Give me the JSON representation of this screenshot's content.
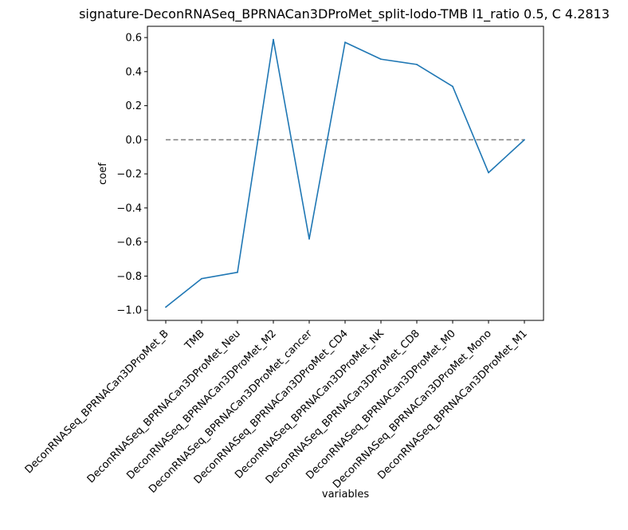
{
  "chart_data": {
    "type": "line",
    "title": "signature-DeconRNASeq_BPRNACan3DProMet_split-lodo-TMB l1_ratio 0.5, C 4.2813",
    "xlabel": "variables",
    "ylabel": "coef",
    "categories": [
      "DeconRNASeq_BPRNACan3DProMet_B",
      "TMB",
      "DeconRNASeq_BPRNACan3DProMet_Neu",
      "DeconRNASeq_BPRNACan3DProMet_M2",
      "DeconRNASeq_BPRNACan3DProMet_cancer",
      "DeconRNASeq_BPRNACan3DProMet_CD4",
      "DeconRNASeq_BPRNACan3DProMet_NK",
      "DeconRNASeq_BPRNACan3DProMet_CD8",
      "DeconRNASeq_BPRNACan3DProMet_M0",
      "DeconRNASeq_BPRNACan3DProMet_Mono",
      "DeconRNASeq_BPRNACan3DProMet_M1"
    ],
    "series": [
      {
        "values": [
          -0.982,
          -0.815,
          -0.778,
          0.588,
          -0.582,
          0.572,
          0.473,
          0.442,
          0.313,
          -0.193,
          0.0
        ],
        "color": "#1f77b4"
      }
    ],
    "reference_line": {
      "y": 0.0,
      "style": "dashed",
      "color": "#808080"
    },
    "yticks": [
      -1.0,
      -0.8,
      -0.6,
      -0.4,
      -0.2,
      0.0,
      0.2,
      0.4,
      0.6
    ],
    "yticklabels": [
      "−1.0",
      "−0.8",
      "−0.6",
      "−0.4",
      "−0.2",
      "0.0",
      "0.2",
      "0.4",
      "0.6"
    ],
    "ylim": [
      -1.06,
      0.666
    ],
    "grid": false,
    "legend": false
  }
}
